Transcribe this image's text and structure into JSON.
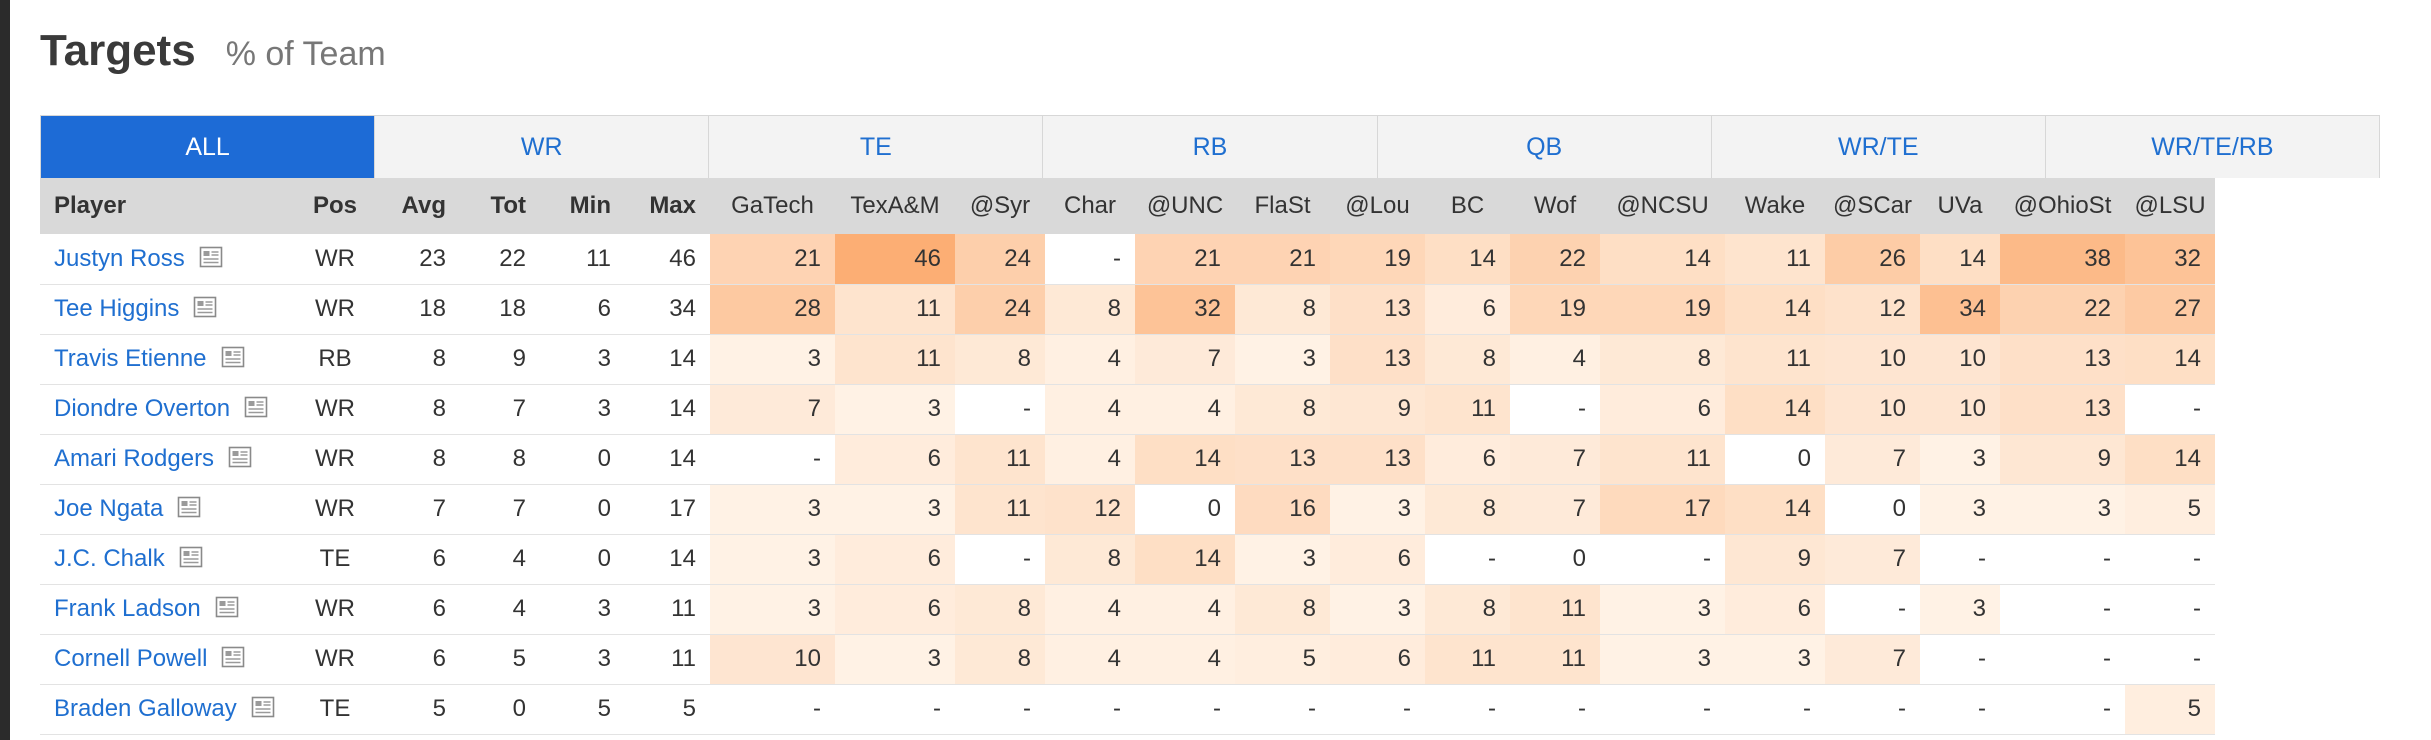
{
  "header": {
    "title": "Targets",
    "subtitle": "% of Team"
  },
  "tabs": [
    {
      "label": "ALL",
      "active": true
    },
    {
      "label": "WR",
      "active": false
    },
    {
      "label": "TE",
      "active": false
    },
    {
      "label": "RB",
      "active": false
    },
    {
      "label": "QB",
      "active": false
    },
    {
      "label": "WR/TE",
      "active": false
    },
    {
      "label": "WR/TE/RB",
      "active": false
    }
  ],
  "table": {
    "fixed_headers": [
      "Player",
      "Pos",
      "Avg",
      "Tot",
      "Min",
      "Max"
    ],
    "opponents": [
      "GaTech",
      "TexA&M",
      "@Syr",
      "Char",
      "@UNC",
      "FlaSt",
      "@Lou",
      "BC",
      "Wof",
      "@NCSU",
      "Wake",
      "@SCar",
      "UVa",
      "@OhioSt",
      "@LSU"
    ],
    "rows": [
      {
        "player": "Justyn Ross",
        "pos": "WR",
        "avg": "23",
        "tot": "22",
        "min": "11",
        "max": "46",
        "games": [
          "21",
          "46",
          "24",
          "-",
          "21",
          "21",
          "19",
          "14",
          "22",
          "14",
          "11",
          "26",
          "14",
          "38",
          "32"
        ]
      },
      {
        "player": "Tee Higgins",
        "pos": "WR",
        "avg": "18",
        "tot": "18",
        "min": "6",
        "max": "34",
        "games": [
          "28",
          "11",
          "24",
          "8",
          "32",
          "8",
          "13",
          "6",
          "19",
          "19",
          "14",
          "12",
          "34",
          "22",
          "27"
        ]
      },
      {
        "player": "Travis Etienne",
        "pos": "RB",
        "avg": "8",
        "tot": "9",
        "min": "3",
        "max": "14",
        "games": [
          "3",
          "11",
          "8",
          "4",
          "7",
          "3",
          "13",
          "8",
          "4",
          "8",
          "11",
          "10",
          "10",
          "13",
          "14"
        ]
      },
      {
        "player": "Diondre Overton",
        "pos": "WR",
        "avg": "8",
        "tot": "7",
        "min": "3",
        "max": "14",
        "games": [
          "7",
          "3",
          "-",
          "4",
          "4",
          "8",
          "9",
          "11",
          "-",
          "6",
          "14",
          "10",
          "10",
          "13",
          "-"
        ]
      },
      {
        "player": "Amari Rodgers",
        "pos": "WR",
        "avg": "8",
        "tot": "8",
        "min": "0",
        "max": "14",
        "games": [
          "-",
          "6",
          "11",
          "4",
          "14",
          "13",
          "13",
          "6",
          "7",
          "11",
          "0",
          "7",
          "3",
          "9",
          "14"
        ]
      },
      {
        "player": "Joe Ngata",
        "pos": "WR",
        "avg": "7",
        "tot": "7",
        "min": "0",
        "max": "17",
        "games": [
          "3",
          "3",
          "11",
          "12",
          "0",
          "16",
          "3",
          "8",
          "7",
          "17",
          "14",
          "0",
          "3",
          "3",
          "5"
        ]
      },
      {
        "player": "J.C. Chalk",
        "pos": "TE",
        "avg": "6",
        "tot": "4",
        "min": "0",
        "max": "14",
        "games": [
          "3",
          "6",
          "-",
          "8",
          "14",
          "3",
          "6",
          "-",
          "0",
          "-",
          "9",
          "7",
          "-",
          "-",
          "-"
        ]
      },
      {
        "player": "Frank Ladson",
        "pos": "WR",
        "avg": "6",
        "tot": "4",
        "min": "3",
        "max": "11",
        "games": [
          "3",
          "6",
          "8",
          "4",
          "4",
          "8",
          "3",
          "8",
          "11",
          "3",
          "6",
          "-",
          "3",
          "-",
          "-"
        ]
      },
      {
        "player": "Cornell Powell",
        "pos": "WR",
        "avg": "6",
        "tot": "5",
        "min": "3",
        "max": "11",
        "games": [
          "10",
          "3",
          "8",
          "4",
          "4",
          "5",
          "6",
          "11",
          "11",
          "3",
          "3",
          "7",
          "-",
          "-",
          "-"
        ]
      },
      {
        "player": "Braden Galloway",
        "pos": "TE",
        "avg": "5",
        "tot": "0",
        "min": "5",
        "max": "5",
        "games": [
          "-",
          "-",
          "-",
          "-",
          "-",
          "-",
          "-",
          "-",
          "-",
          "-",
          "-",
          "-",
          "-",
          "-",
          "5"
        ]
      }
    ]
  },
  "colors": {
    "tab_active_bg": "#1d6bd6",
    "link": "#1f6fd0",
    "heat_low": "#fff8f0",
    "heat_high": "#fcae74"
  },
  "icons": {
    "player_news": "news-icon"
  }
}
